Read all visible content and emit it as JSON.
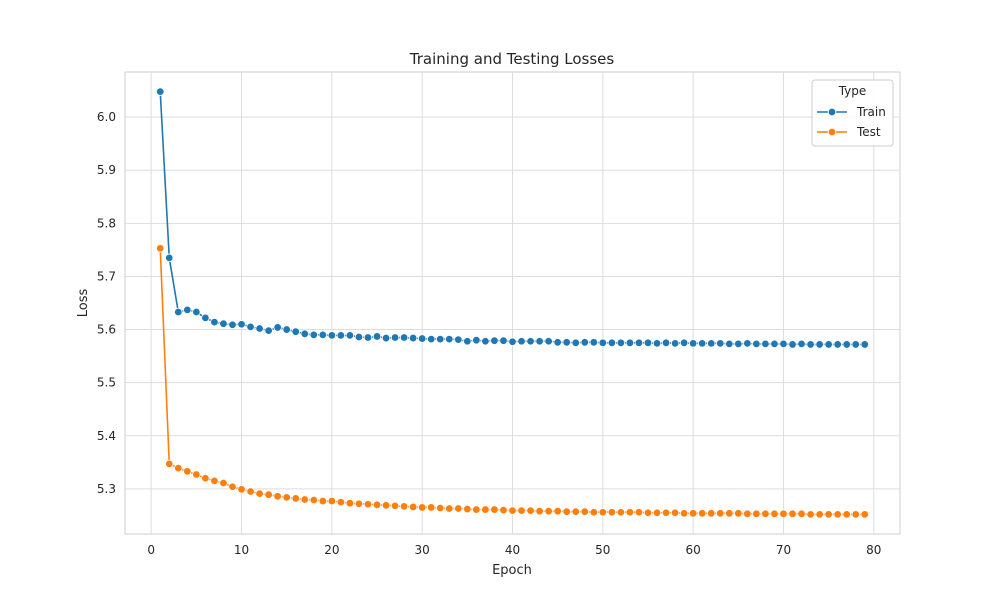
{
  "chart_data": {
    "type": "line",
    "title": "Training and Testing Losses",
    "xlabel": "Epoch",
    "ylabel": "Loss",
    "xlim": [
      -2.9,
      82.9
    ],
    "ylim": [
      5.215,
      6.085
    ],
    "xticks": [
      0,
      10,
      20,
      30,
      40,
      50,
      60,
      70,
      80
    ],
    "yticks": [
      5.3,
      5.4,
      5.5,
      5.6,
      5.7,
      5.8,
      5.9,
      6.0
    ],
    "grid": true,
    "legend": {
      "title": "Type",
      "position": "top-right"
    },
    "x": [
      1,
      2,
      3,
      4,
      5,
      6,
      7,
      8,
      9,
      10,
      11,
      12,
      13,
      14,
      15,
      16,
      17,
      18,
      19,
      20,
      21,
      22,
      23,
      24,
      25,
      26,
      27,
      28,
      29,
      30,
      31,
      32,
      33,
      34,
      35,
      36,
      37,
      38,
      39,
      40,
      41,
      42,
      43,
      44,
      45,
      46,
      47,
      48,
      49,
      50,
      51,
      52,
      53,
      54,
      55,
      56,
      57,
      58,
      59,
      60,
      61,
      62,
      63,
      64,
      65,
      66,
      67,
      68,
      69,
      70,
      71,
      72,
      73,
      74,
      75,
      76,
      77,
      78,
      79
    ],
    "series": [
      {
        "name": "Train",
        "color": "#1f77b4",
        "values": [
          6.048,
          5.735,
          5.633,
          5.637,
          5.633,
          5.622,
          5.614,
          5.611,
          5.609,
          5.61,
          5.605,
          5.602,
          5.598,
          5.604,
          5.6,
          5.596,
          5.592,
          5.59,
          5.59,
          5.589,
          5.589,
          5.589,
          5.586,
          5.585,
          5.587,
          5.584,
          5.585,
          5.585,
          5.584,
          5.583,
          5.582,
          5.582,
          5.582,
          5.581,
          5.578,
          5.58,
          5.578,
          5.579,
          5.579,
          5.577,
          5.578,
          5.578,
          5.578,
          5.578,
          5.576,
          5.576,
          5.575,
          5.576,
          5.576,
          5.575,
          5.575,
          5.575,
          5.575,
          5.575,
          5.575,
          5.574,
          5.575,
          5.574,
          5.575,
          5.574,
          5.574,
          5.574,
          5.574,
          5.573,
          5.573,
          5.574,
          5.573,
          5.573,
          5.573,
          5.573,
          5.572,
          5.573,
          5.572,
          5.572,
          5.572,
          5.572,
          5.572,
          5.572,
          5.572
        ]
      },
      {
        "name": "Test",
        "color": "#ff7f0e",
        "values": [
          5.753,
          5.347,
          5.339,
          5.333,
          5.327,
          5.32,
          5.315,
          5.311,
          5.304,
          5.299,
          5.295,
          5.291,
          5.289,
          5.286,
          5.284,
          5.282,
          5.28,
          5.279,
          5.277,
          5.277,
          5.275,
          5.273,
          5.272,
          5.271,
          5.27,
          5.269,
          5.268,
          5.267,
          5.266,
          5.265,
          5.265,
          5.264,
          5.263,
          5.263,
          5.262,
          5.261,
          5.261,
          5.261,
          5.26,
          5.259,
          5.259,
          5.259,
          5.258,
          5.258,
          5.258,
          5.257,
          5.257,
          5.257,
          5.256,
          5.256,
          5.256,
          5.256,
          5.256,
          5.256,
          5.255,
          5.255,
          5.255,
          5.255,
          5.254,
          5.254,
          5.254,
          5.254,
          5.254,
          5.254,
          5.254,
          5.253,
          5.253,
          5.253,
          5.253,
          5.253,
          5.253,
          5.253,
          5.252,
          5.252,
          5.252,
          5.252,
          5.252,
          5.252,
          5.252
        ]
      }
    ]
  }
}
